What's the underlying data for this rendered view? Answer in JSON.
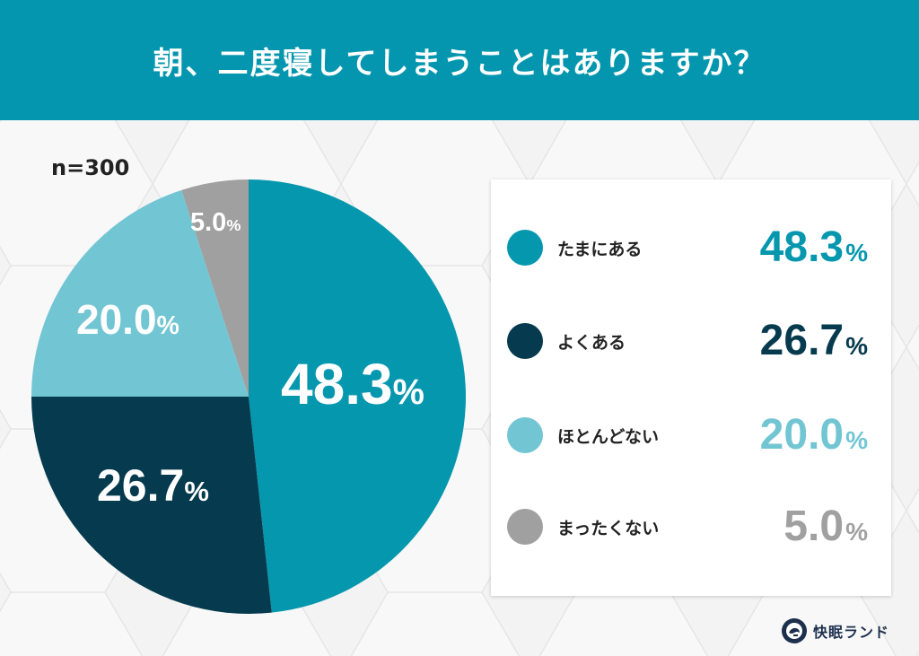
{
  "header": {
    "title": "朝、二度寝してしまうことはありますか？"
  },
  "sample_size": "n=300",
  "colors": {
    "header_bg": "#0396ae",
    "tamani_aru": "#0597ae",
    "yoku_aru": "#063a4e",
    "hotondo_nai": "#72c5d3",
    "mattaku_nai": "#a0a0a0"
  },
  "pie_labels": [
    {
      "number": "48.3",
      "unit": "%"
    },
    {
      "number": "26.7",
      "unit": "%"
    },
    {
      "number": "20.0",
      "unit": "%"
    },
    {
      "number": "5.0",
      "unit": "%"
    }
  ],
  "legend": {
    "items": [
      {
        "label": "たまにある",
        "number": "48.3",
        "unit": "%",
        "color": "#0597ae"
      },
      {
        "label": "よくある",
        "number": "26.7",
        "unit": "%",
        "color": "#063a4e"
      },
      {
        "label": "ほとんどない",
        "number": "20.0",
        "unit": "%",
        "color": "#72c5d3"
      },
      {
        "label": "まったくない",
        "number": "5.0",
        "unit": "%",
        "color": "#a0a0a0"
      }
    ]
  },
  "brand": {
    "name": "快眠ランド",
    "logo_icon": "kaimin-land-logo-icon"
  },
  "chart_data": {
    "type": "pie",
    "title": "朝、二度寝してしまうことはありますか？",
    "subtitle": "n=300",
    "categories": [
      "たまにある",
      "よくある",
      "ほとんどない",
      "まったくない"
    ],
    "values": [
      48.3,
      26.7,
      20.0,
      5.0
    ],
    "unit": "%",
    "colors": [
      "#0597ae",
      "#063a4e",
      "#72c5d3",
      "#a0a0a0"
    ],
    "start_angle": "12 o'clock",
    "direction": "clockwise",
    "legend_position": "right",
    "data_labels": [
      "48.3%",
      "26.7%",
      "20.0%",
      "5.0%"
    ]
  }
}
